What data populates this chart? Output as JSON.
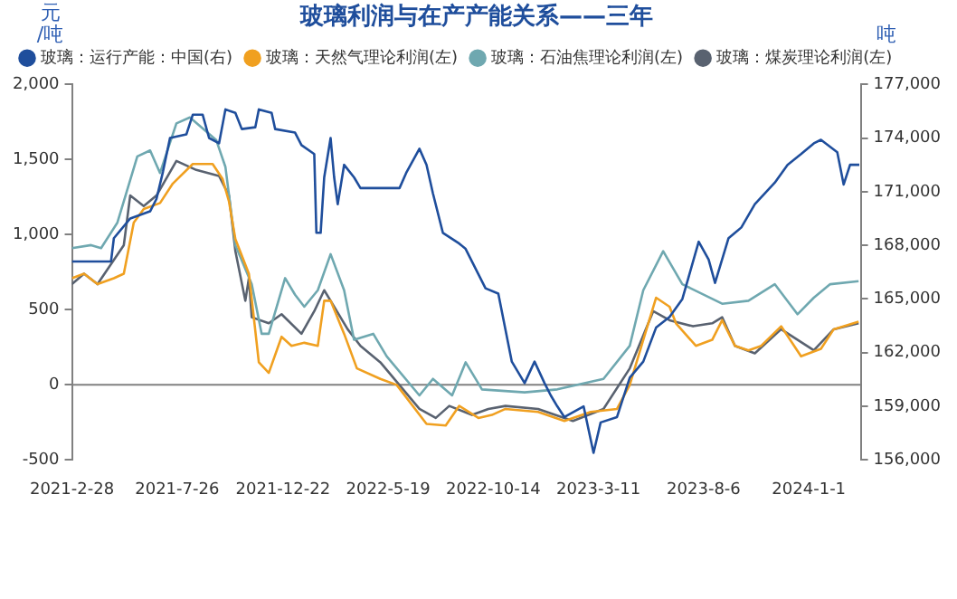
{
  "chart_data": {
    "type": "line",
    "title": "玻璃利润与在产产能关系——三年",
    "ylabel": "元/吨",
    "y2label": "吨",
    "xlim": [
      "2021-02-28",
      "2024-03-14"
    ],
    "xticks": [
      {
        "value": "2021-02-28",
        "label": "2021-2-28"
      },
      {
        "value": "2021-07-26",
        "label": "2021-7-26"
      },
      {
        "value": "2021-12-22",
        "label": "2021-12-22"
      },
      {
        "value": "2022-05-19",
        "label": "2022-5-19"
      },
      {
        "value": "2022-10-14",
        "label": "2022-10-14"
      },
      {
        "value": "2023-03-11",
        "label": "2023-3-11"
      },
      {
        "value": "2023-08-06",
        "label": "2023-8-6"
      },
      {
        "value": "2024-01-01",
        "label": "2024-1-1"
      }
    ],
    "ylim": [
      -500,
      2000
    ],
    "yticks": [
      -500,
      0,
      500,
      {
        "value": 1000,
        "label": "1,000"
      },
      {
        "value": 1500,
        "label": "1,500"
      },
      {
        "value": 2000,
        "label": "2,000"
      }
    ],
    "y2lim": [
      156000,
      177000
    ],
    "y2ticks": [
      {
        "value": 156000,
        "label": "156,000"
      },
      {
        "value": 159000,
        "label": "159,000"
      },
      {
        "value": 162000,
        "label": "162,000"
      },
      {
        "value": 165000,
        "label": "165,000"
      },
      {
        "value": 168000,
        "label": "168,000"
      },
      {
        "value": 171000,
        "label": "171,000"
      },
      {
        "value": 174000,
        "label": "174,000"
      },
      {
        "value": 177000,
        "label": "177,000"
      }
    ],
    "grid": false,
    "legend": "top",
    "marker": "none",
    "line_style": "solid",
    "ref_lines": [
      {
        "axis": "y",
        "value": 0,
        "color": "#808080"
      }
    ],
    "series": [
      {
        "name": "玻璃：运行产能：中国(右)",
        "color": "#1f4e9c",
        "axis": "y2",
        "x": [
          "2021-02-28",
          "2021-04-24",
          "2021-04-28",
          "2021-05-21",
          "2021-06-18",
          "2021-06-27",
          "2021-07-06",
          "2021-07-16",
          "2021-08-08",
          "2021-08-17",
          "2021-08-31",
          "2021-09-09",
          "2021-09-23",
          "2021-10-02",
          "2021-10-16",
          "2021-10-25",
          "2021-11-13",
          "2021-11-18",
          "2021-12-06",
          "2021-12-11",
          "2022-01-08",
          "2022-01-17",
          "2022-02-04",
          "2022-02-07",
          "2022-02-13",
          "2022-02-18",
          "2022-02-27",
          "2022-03-04",
          "2022-03-09",
          "2022-03-18",
          "2022-04-01",
          "2022-04-10",
          "2022-06-04",
          "2022-06-14",
          "2022-07-02",
          "2022-07-12",
          "2022-07-21",
          "2022-08-04",
          "2022-08-27",
          "2022-09-05",
          "2022-10-03",
          "2022-10-21",
          "2022-11-09",
          "2022-11-27",
          "2022-12-11",
          "2022-12-25",
          "2023-01-03",
          "2023-01-12",
          "2023-01-22",
          "2023-02-18",
          "2023-03-04",
          "2023-03-14",
          "2023-04-06",
          "2023-04-24",
          "2023-05-13",
          "2023-05-31",
          "2023-06-19",
          "2023-07-07",
          "2023-07-30",
          "2023-08-13",
          "2023-08-22",
          "2023-09-10",
          "2023-09-28",
          "2023-10-17",
          "2023-11-14",
          "2023-12-02",
          "2023-12-21",
          "2024-01-08",
          "2024-01-18",
          "2024-02-10",
          "2024-02-19",
          "2024-02-28",
          "2024-03-12"
        ],
        "values": [
          167100,
          167100,
          168400,
          169500,
          169900,
          170600,
          172100,
          174000,
          174200,
          175300,
          175300,
          174000,
          173700,
          175600,
          175400,
          174500,
          174600,
          175600,
          175400,
          174500,
          174300,
          173600,
          173100,
          168700,
          168700,
          171800,
          174000,
          171800,
          170300,
          172500,
          171800,
          171200,
          171200,
          172100,
          173400,
          172500,
          170900,
          168700,
          168100,
          167800,
          165600,
          165300,
          161500,
          160300,
          161500,
          160300,
          159600,
          159000,
          158400,
          159000,
          156400,
          158100,
          158400,
          160600,
          161500,
          163400,
          164000,
          165000,
          168200,
          167200,
          165900,
          168400,
          169000,
          170300,
          171500,
          172500,
          173100,
          173700,
          173900,
          173200,
          171400,
          172500,
          172500
        ]
      },
      {
        "name": "玻璃：天然气理论利润(左)",
        "color": "#f0a020",
        "x": [
          "2021-02-28",
          "2021-03-17",
          "2021-04-05",
          "2021-04-28",
          "2021-05-12",
          "2021-05-26",
          "2021-06-09",
          "2021-07-02",
          "2021-07-20",
          "2021-08-17",
          "2021-09-14",
          "2021-09-28",
          "2021-10-07",
          "2021-10-16",
          "2021-11-04",
          "2021-11-18",
          "2021-12-02",
          "2021-12-20",
          "2022-01-03",
          "2022-01-21",
          "2022-02-09",
          "2022-02-18",
          "2022-02-27",
          "2022-03-18",
          "2022-04-05",
          "2022-05-08",
          "2022-05-31",
          "2022-07-12",
          "2022-08-08",
          "2022-08-27",
          "2022-09-23",
          "2022-10-12",
          "2022-10-31",
          "2022-12-16",
          "2023-01-22",
          "2023-02-28",
          "2023-04-06",
          "2023-04-24",
          "2023-05-13",
          "2023-05-31",
          "2023-06-19",
          "2023-06-28",
          "2023-07-26",
          "2023-08-18",
          "2023-09-01",
          "2023-09-19",
          "2023-10-08",
          "2023-10-26",
          "2023-11-23",
          "2023-12-21",
          "2024-01-18",
          "2024-02-05",
          "2024-03-11"
        ],
        "values": [
          710,
          740,
          670,
          710,
          740,
          1080,
          1170,
          1210,
          1340,
          1470,
          1470,
          1370,
          1220,
          970,
          740,
          150,
          80,
          320,
          260,
          280,
          260,
          560,
          560,
          340,
          110,
          40,
          0,
          -260,
          -270,
          -140,
          -220,
          -200,
          -160,
          -180,
          -240,
          -180,
          -160,
          0,
          300,
          580,
          520,
          410,
          260,
          300,
          430,
          260,
          230,
          260,
          390,
          190,
          240,
          370,
          420
        ]
      },
      {
        "name": "玻璃：石油焦理论利润(左)",
        "color": "#6fa8b0",
        "x": [
          "2021-02-28",
          "2021-03-27",
          "2021-04-10",
          "2021-05-03",
          "2021-05-31",
          "2021-06-18",
          "2021-07-02",
          "2021-07-25",
          "2021-08-13",
          "2021-09-19",
          "2021-10-02",
          "2021-10-16",
          "2021-11-08",
          "2021-11-22",
          "2021-12-02",
          "2021-12-25",
          "2022-01-08",
          "2022-01-21",
          "2022-02-09",
          "2022-02-27",
          "2022-03-18",
          "2022-04-01",
          "2022-04-28",
          "2022-05-17",
          "2022-07-02",
          "2022-07-21",
          "2022-08-17",
          "2022-09-05",
          "2022-09-28",
          "2022-11-27",
          "2023-01-12",
          "2023-03-18",
          "2023-04-24",
          "2023-05-13",
          "2023-06-10",
          "2023-07-07",
          "2023-09-01",
          "2023-10-08",
          "2023-11-14",
          "2023-12-16",
          "2024-01-08",
          "2024-01-31",
          "2024-03-11"
        ],
        "values": [
          910,
          930,
          910,
          1080,
          1520,
          1560,
          1410,
          1740,
          1780,
          1630,
          1450,
          930,
          670,
          340,
          340,
          710,
          600,
          520,
          630,
          870,
          630,
          300,
          340,
          190,
          -70,
          40,
          -70,
          150,
          -30,
          -50,
          -30,
          40,
          260,
          630,
          890,
          670,
          540,
          560,
          670,
          470,
          580,
          670,
          690
        ]
      },
      {
        "name": "玻璃：煤炭理论利润(左)",
        "color": "#596270",
        "x": [
          "2021-02-28",
          "2021-03-17",
          "2021-04-05",
          "2021-05-12",
          "2021-05-21",
          "2021-06-09",
          "2021-06-27",
          "2021-07-25",
          "2021-08-22",
          "2021-09-23",
          "2021-10-07",
          "2021-10-16",
          "2021-10-30",
          "2021-11-04",
          "2021-11-08",
          "2021-12-02",
          "2021-12-20",
          "2022-01-17",
          "2022-02-04",
          "2022-02-18",
          "2022-02-27",
          "2022-03-23",
          "2022-04-10",
          "2022-05-08",
          "2022-07-02",
          "2022-07-25",
          "2022-08-13",
          "2022-09-14",
          "2022-10-07",
          "2022-10-31",
          "2022-12-16",
          "2023-02-03",
          "2023-03-18",
          "2023-04-24",
          "2023-05-27",
          "2023-06-19",
          "2023-07-22",
          "2023-08-18",
          "2023-09-01",
          "2023-09-19",
          "2023-10-17",
          "2023-11-23",
          "2024-01-08",
          "2024-02-05",
          "2024-03-11"
        ],
        "values": [
          670,
          740,
          670,
          930,
          1260,
          1190,
          1260,
          1490,
          1430,
          1390,
          1260,
          890,
          560,
          710,
          450,
          410,
          470,
          340,
          490,
          630,
          560,
          370,
          260,
          150,
          -160,
          -220,
          -140,
          -200,
          -160,
          -140,
          -160,
          -240,
          -160,
          110,
          490,
          430,
          390,
          410,
          450,
          260,
          210,
          370,
          230,
          370,
          410
        ]
      }
    ]
  }
}
